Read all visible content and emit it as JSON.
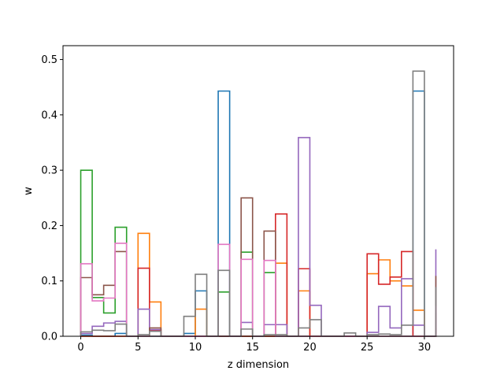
{
  "chart_data": {
    "type": "step-histogram",
    "xlabel": "z dimension",
    "ylabel": "w",
    "xlim": [
      -1.55,
      32.55
    ],
    "ylim": [
      0,
      0.525
    ],
    "xticks": [
      0,
      5,
      10,
      15,
      20,
      25,
      30
    ],
    "yticks": [
      0.0,
      0.1,
      0.2,
      0.3,
      0.4,
      0.5
    ],
    "ytick_labels": [
      "0.0",
      "0.1",
      "0.2",
      "0.3",
      "0.4",
      "0.5"
    ],
    "bin_edges": [
      0,
      1,
      2,
      3,
      4,
      5,
      6,
      7,
      8,
      9,
      10,
      11,
      12,
      13,
      14,
      15,
      16,
      17,
      18,
      19,
      20,
      21,
      22,
      23,
      24,
      25,
      26,
      27,
      28,
      29,
      30,
      31
    ],
    "series": [
      {
        "color": "#1f77b4",
        "values": [
          0.002,
          0,
          0,
          0.005,
          0,
          0,
          0,
          0,
          0,
          0.005,
          0.082,
          0,
          0.443,
          0,
          0,
          0,
          0,
          0,
          0,
          0,
          0,
          0,
          0,
          0,
          0,
          0,
          0,
          0,
          0,
          0.443,
          0,
          0
        ]
      },
      {
        "color": "#ff7f0e",
        "values": [
          0,
          0,
          0,
          0,
          0,
          0.186,
          0.062,
          0,
          0,
          0,
          0.049,
          0,
          0,
          0,
          0,
          0,
          0,
          0.132,
          0,
          0.082,
          0,
          0,
          0,
          0,
          0,
          0.113,
          0.138,
          0.1,
          0.091,
          0.047,
          0,
          0
        ]
      },
      {
        "color": "#2ca02c",
        "values": [
          0.3,
          0.07,
          0.042,
          0.197,
          0,
          0,
          0,
          0,
          0,
          0,
          0,
          0,
          0.08,
          0,
          0.152,
          0,
          0.115,
          0,
          0,
          0,
          0,
          0,
          0,
          0,
          0,
          0,
          0,
          0,
          0,
          0,
          0,
          0.042
        ]
      },
      {
        "color": "#d62728",
        "values": [
          0,
          0,
          0,
          0,
          0,
          0.123,
          0.011,
          0,
          0,
          0,
          0,
          0,
          0,
          0,
          0,
          0,
          0,
          0.221,
          0,
          0.122,
          0,
          0,
          0,
          0,
          0,
          0.149,
          0.094,
          0.107,
          0.153,
          0,
          0,
          0.015
        ]
      },
      {
        "color": "#9467bd",
        "values": [
          0.005,
          0.018,
          0.024,
          0.027,
          0,
          0.049,
          0.012,
          0,
          0,
          0,
          0,
          0,
          0,
          0,
          0.025,
          0,
          0.021,
          0.021,
          0,
          0.359,
          0.056,
          0,
          0,
          0,
          0,
          0.007,
          0.054,
          0.015,
          0.104,
          0.02,
          0,
          0.157
        ]
      },
      {
        "color": "#8c564b",
        "values": [
          0.106,
          0.075,
          0.092,
          0.153,
          0,
          0,
          0.015,
          0,
          0,
          0,
          0,
          0,
          0,
          0,
          0.25,
          0,
          0.19,
          0,
          0,
          0,
          0,
          0,
          0,
          0,
          0,
          0,
          0,
          0,
          0,
          0,
          0,
          0.109
        ]
      },
      {
        "color": "#e377c2",
        "values": [
          0.131,
          0.064,
          0.069,
          0.168,
          0,
          0,
          0,
          0,
          0,
          0,
          0,
          0,
          0.166,
          0,
          0.139,
          0,
          0.137,
          0,
          0,
          0,
          0,
          0,
          0,
          0,
          0,
          0,
          0,
          0,
          0,
          0,
          0,
          0.055
        ]
      },
      {
        "color": "#7f7f7f",
        "values": [
          0.008,
          0.011,
          0.01,
          0.022,
          0,
          0.003,
          0.009,
          0,
          0,
          0.036,
          0.112,
          0,
          0.119,
          0,
          0.013,
          0,
          0.003,
          0.003,
          0,
          0.015,
          0.03,
          0,
          0,
          0.006,
          0,
          0.003,
          0.004,
          0.003,
          0.02,
          0.479,
          0,
          0.089
        ]
      }
    ]
  }
}
